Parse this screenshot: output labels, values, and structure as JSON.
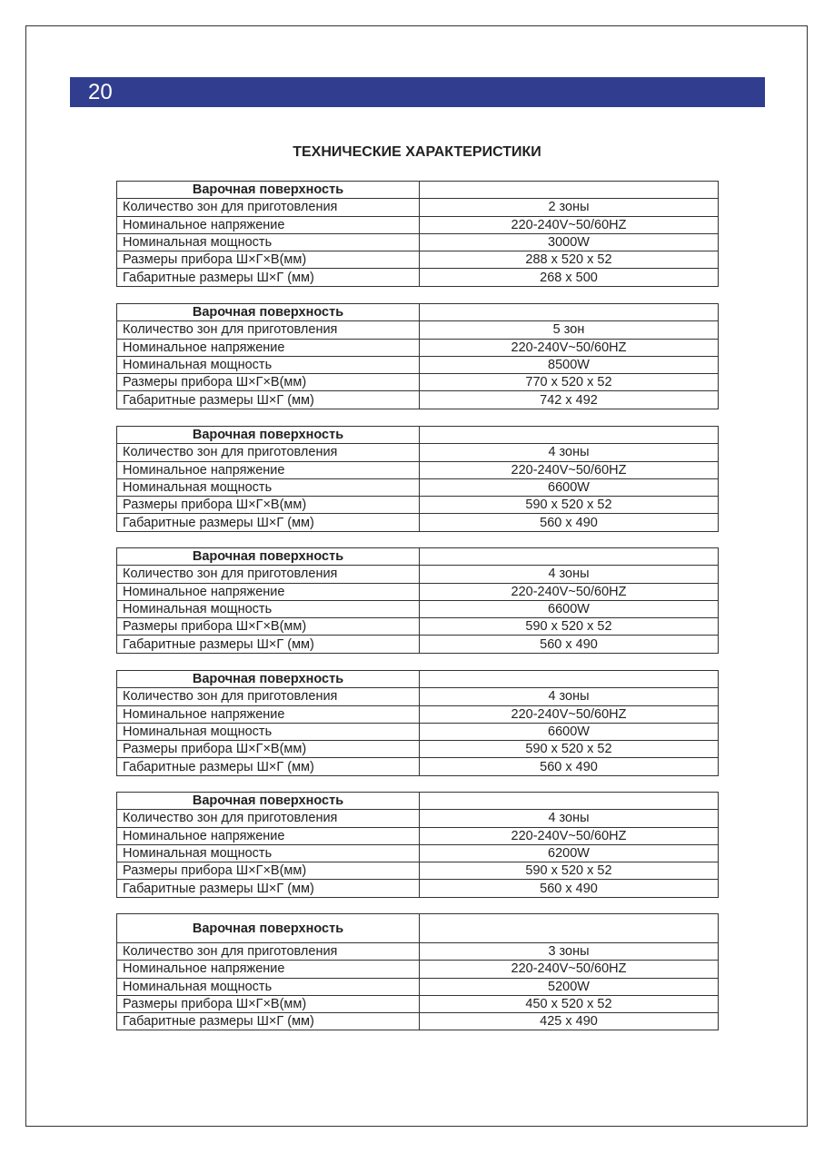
{
  "page_number": "20",
  "title": "ТЕХНИЧЕСКИЕ ХАРАКТЕРИСТИКИ",
  "row_labels": [
    "Количество зон для приготовления",
    "Номинальное напряжение",
    "Номинальная мощность",
    "Размеры прибора Ш×Г×В(мм)",
    "Габаритные размеры Ш×Г (мм)"
  ],
  "tables": [
    {
      "header": "Варочная поверхность",
      "values": [
        "2 зоны",
        "220-240V~50/60HZ",
        "3000W",
        "288 x 520 x 52",
        "268 x 500"
      ]
    },
    {
      "header": "Варочная поверхность",
      "values": [
        "5 зон",
        "220-240V~50/60HZ",
        "8500W",
        "770 x 520 x 52",
        "742 x 492"
      ]
    },
    {
      "header": "Варочная поверхность",
      "values": [
        "4 зоны",
        "220-240V~50/60HZ",
        "6600W",
        "590 x 520 x 52",
        "560 x 490"
      ]
    },
    {
      "header": "Варочная поверхность",
      "values": [
        "4 зоны",
        "220-240V~50/60HZ",
        "6600W",
        "590 x 520 x 52",
        "560 x 490"
      ]
    },
    {
      "header": "Варочная поверхность",
      "values": [
        "4 зоны",
        "220-240V~50/60HZ",
        "6600W",
        "590 x 520 x 52",
        "560 x 490"
      ]
    },
    {
      "header": "Варочная поверхность",
      "values": [
        "4 зоны",
        "220-240V~50/60HZ",
        "6200W",
        "590 x 520 x 52",
        "560 x 490"
      ]
    },
    {
      "header": "Варочная поверхность",
      "values": [
        "3 зоны",
        "220-240V~50/60HZ",
        "5200W",
        "450 x 520 x 52",
        "425 x 490"
      ]
    }
  ]
}
